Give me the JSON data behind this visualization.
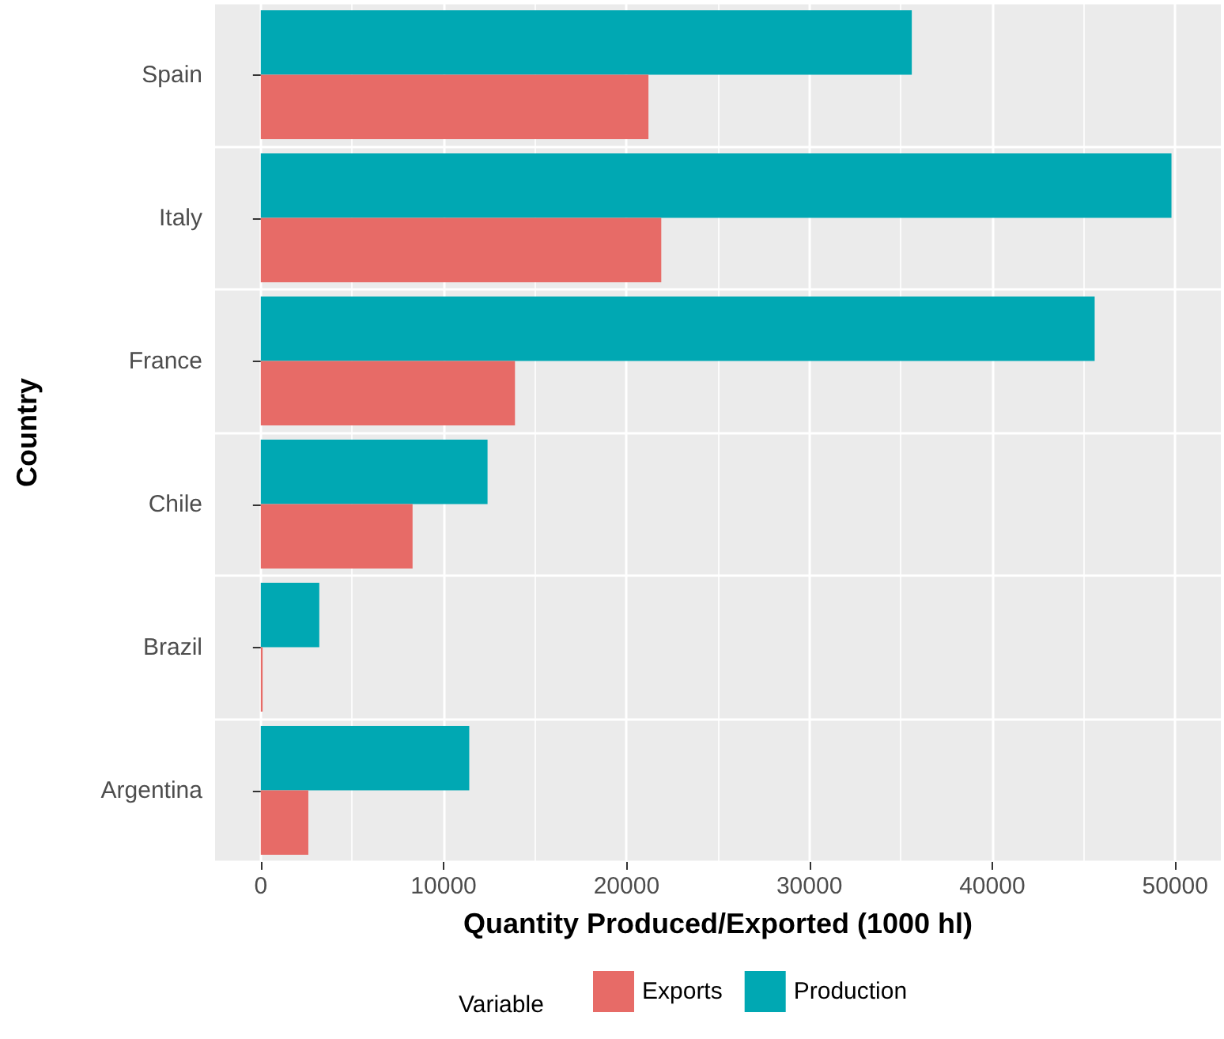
{
  "chart_data": {
    "type": "bar",
    "orientation": "horizontal",
    "xlabel": "Quantity Produced/Exported (1000 hl)",
    "ylabel": "Country",
    "legend_title": "Variable",
    "categories": [
      "Spain",
      "Italy",
      "France",
      "Chile",
      "Brazil",
      "Argentina"
    ],
    "series": [
      {
        "name": "Exports",
        "color": "#e76b67",
        "values": [
          21200,
          21900,
          13900,
          8300,
          100,
          2600
        ]
      },
      {
        "name": "Production",
        "color": "#00a8b3",
        "values": [
          35600,
          49800,
          45600,
          12400,
          3200,
          11400
        ]
      }
    ],
    "xlim": [
      -2500,
      52500
    ],
    "xticks": [
      0,
      10000,
      20000,
      30000,
      40000,
      50000
    ],
    "grid": true,
    "legend": "bottom"
  }
}
